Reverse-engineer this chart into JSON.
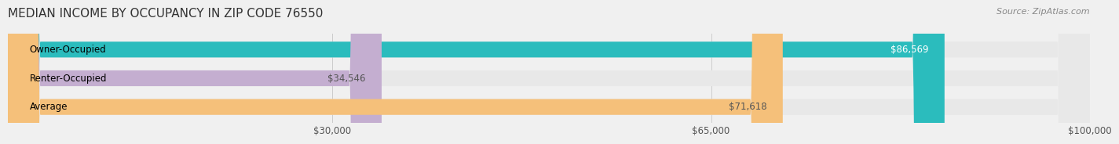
{
  "title": "MEDIAN INCOME BY OCCUPANCY IN ZIP CODE 76550",
  "source": "Source: ZipAtlas.com",
  "categories": [
    "Owner-Occupied",
    "Renter-Occupied",
    "Average"
  ],
  "values": [
    86569,
    34546,
    71618
  ],
  "bar_colors": [
    "#2bbcbd",
    "#c4aed0",
    "#f5c07a"
  ],
  "label_colors": [
    "#ffffff",
    "#555555",
    "#555555"
  ],
  "value_labels": [
    "$86,569",
    "$34,546",
    "$71,618"
  ],
  "xlim": [
    0,
    100000
  ],
  "xticks": [
    0,
    30000,
    65000,
    100000
  ],
  "xtick_labels": [
    "",
    "$30,000",
    "$65,000",
    "$100,000"
  ],
  "bar_height": 0.55,
  "background_color": "#f0f0f0",
  "bar_bg_color": "#e8e8e8",
  "title_fontsize": 11,
  "label_fontsize": 8.5,
  "value_fontsize": 8.5,
  "tick_fontsize": 8.5,
  "source_fontsize": 8
}
